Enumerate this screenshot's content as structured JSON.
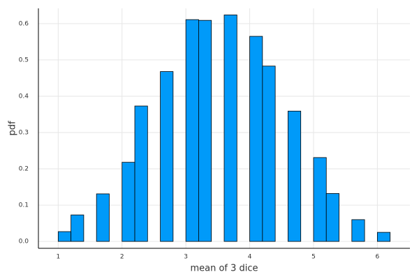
{
  "chart_data": {
    "type": "histogram",
    "x_label": "mean of 3 dice",
    "y_label": "pdf",
    "bins": [
      1.0,
      1.2,
      1.4,
      1.6,
      1.8,
      2.0,
      2.2,
      2.4,
      2.6,
      2.8,
      3.0,
      3.2,
      3.4,
      3.6,
      3.8,
      4.0,
      4.2,
      4.4,
      4.6,
      4.8,
      5.0,
      5.2,
      5.4,
      5.6,
      5.8,
      6.0,
      6.2
    ],
    "values": [
      0.027,
      0.073,
      0,
      0.131,
      0,
      0.218,
      0.373,
      0,
      0.468,
      0,
      0.611,
      0.609,
      0,
      0.624,
      0,
      0.565,
      0.483,
      0,
      0.359,
      0,
      0.231,
      0.132,
      0,
      0.06,
      0,
      0.025
    ],
    "color": "#009af9",
    "xlim": [
      0.69,
      6.51
    ],
    "ylim": [
      -0.019,
      0.642
    ],
    "xticks": [
      1,
      2,
      3,
      4,
      5,
      6
    ],
    "yticks": [
      {
        "value": 0,
        "label": "0.0"
      },
      0.1,
      0.2,
      0.3,
      0.4,
      0.5,
      0.6
    ],
    "grid": true
  }
}
